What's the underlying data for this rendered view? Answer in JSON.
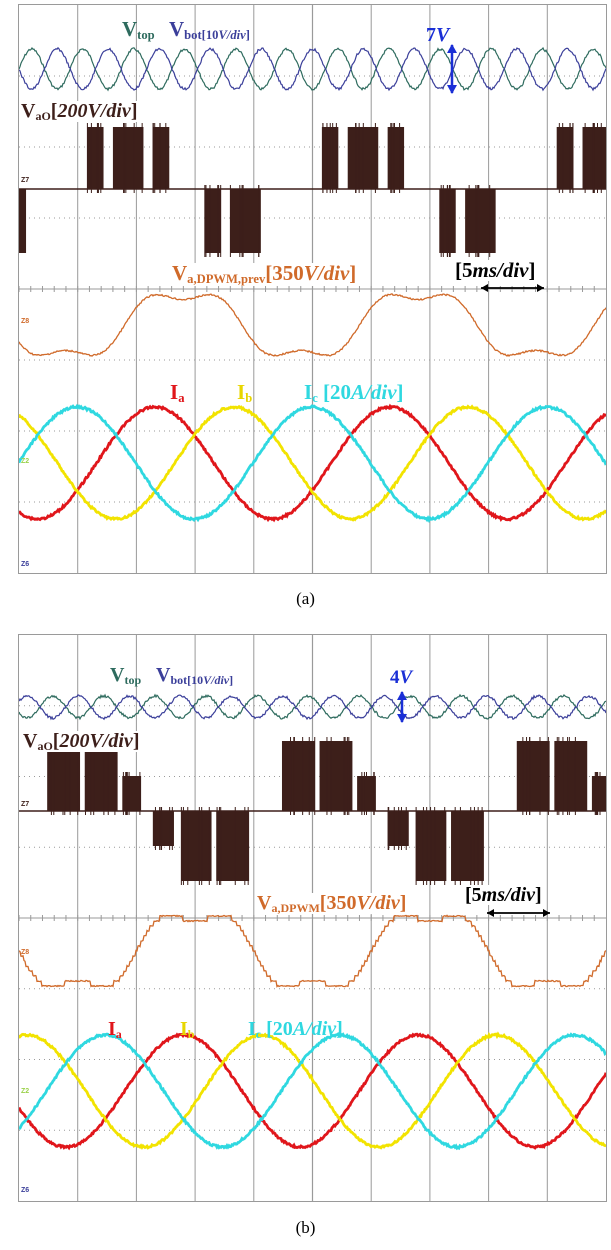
{
  "colors": {
    "vtop": "#2e6b5e",
    "vbot": "#3b3f9a",
    "vao": "#3d1f1a",
    "vdpwm": "#d06a2a",
    "ia": "#e0161b",
    "ib": "#f2e300",
    "ic": "#2fd8e0",
    "annot_blue": "#1a2fd6",
    "grid": "#9a9a9a"
  },
  "panels": [
    {
      "caption": "(a)",
      "labels": {
        "vtop": "V",
        "vtop_sub": "top",
        "vbot": "V",
        "vbot_sub": "bot[10",
        "vbot_unit": "V/div",
        "vbot_close": "]",
        "vao": "V",
        "vao_sub": "aO",
        "vao_scale": "[",
        "vao_unit": "200V/div",
        "vao_close": "]",
        "vdpwm": "V",
        "vdpwm_sub": "a,DPWM,prev",
        "vdpwm_scale": "[350",
        "vdpwm_unit": "V/div",
        "vdpwm_close": "]",
        "ia": "I",
        "ia_sub": "a",
        "ib": "I",
        "ib_sub": "b",
        "ic": "I",
        "ic_sub": "c",
        "current_scale": "[20",
        "current_unit": "A/div",
        "current_close": "]",
        "ripple": "7",
        "ripple_unit": "V",
        "time_scale": "[5",
        "time_unit": "ms/div",
        "time_close": "]"
      },
      "markers": {
        "vao": "Z7",
        "vdpwm": "Z8",
        "currents": "Z2",
        "bottom": "Z6"
      }
    },
    {
      "caption": "(b)",
      "labels": {
        "vtop": "V",
        "vtop_sub": "top",
        "vbot": "V",
        "vbot_sub": "bot[10",
        "vbot_unit": "V/div",
        "vbot_close": "]",
        "vao": "V",
        "vao_sub": "aO",
        "vao_scale": "[",
        "vao_unit": "200V/div",
        "vao_close": "]",
        "vdpwm": "V",
        "vdpwm_sub": "a,DPWM",
        "vdpwm_scale": "[350",
        "vdpwm_unit": "V/div",
        "vdpwm_close": "]",
        "ia": "I",
        "ia_sub": "a",
        "ib": "I",
        "ib_sub": "b",
        "ic": "I",
        "ic_sub": "c",
        "current_scale": "[20",
        "current_unit": "A/div",
        "current_close": "]",
        "ripple": "4",
        "ripple_unit": "V",
        "time_scale": "[5",
        "time_unit": "ms/div",
        "time_close": "]"
      },
      "markers": {
        "vao": "Z7",
        "vdpwm": "Z8",
        "currents": "Z2",
        "bottom": "Z6"
      }
    }
  ],
  "chart_data": [
    {
      "type": "line",
      "title": "(a)",
      "time_per_div_ms": 5,
      "grid_divisions": {
        "x": 10,
        "y": 8
      },
      "grid": true,
      "series": [
        {
          "name": "Vtop",
          "scale": "10 V/div",
          "ripple_V": 7,
          "ripple_cycles_per_screen": 11.5
        },
        {
          "name": "Vbot",
          "scale": "10 V/div",
          "ripple_V": 7,
          "ripple_cycles_per_screen": 11.5
        },
        {
          "name": "VaO",
          "scale": "200 V/div",
          "pwm_pattern": "discontinuous",
          "fundamental_cycles_per_screen": 2.5
        },
        {
          "name": "Va,DPWM,prev",
          "scale": "350 V/div",
          "fundamental_cycles_per_screen": 2.5
        },
        {
          "name": "Ia",
          "scale": "20 A/div",
          "fundamental_cycles_per_screen": 2.5
        },
        {
          "name": "Ib",
          "scale": "20 A/div",
          "fundamental_cycles_per_screen": 2.5
        },
        {
          "name": "Ic",
          "scale": "20 A/div",
          "fundamental_cycles_per_screen": 2.5
        }
      ]
    },
    {
      "type": "line",
      "title": "(b)",
      "time_per_div_ms": 5,
      "grid_divisions": {
        "x": 10,
        "y": 8
      },
      "grid": true,
      "series": [
        {
          "name": "Vtop",
          "scale": "10 V/div",
          "ripple_V": 4,
          "ripple_cycles_per_screen": 11.5
        },
        {
          "name": "Vbot",
          "scale": "10 V/div",
          "ripple_V": 4,
          "ripple_cycles_per_screen": 11.5
        },
        {
          "name": "VaO",
          "scale": "200 V/div",
          "pwm_pattern": "stepped discontinuous",
          "fundamental_cycles_per_screen": 2.5
        },
        {
          "name": "Va,DPWM",
          "scale": "350 V/div",
          "fundamental_cycles_per_screen": 2.5
        },
        {
          "name": "Ia",
          "scale": "20 A/div",
          "fundamental_cycles_per_screen": 2.5
        },
        {
          "name": "Ib",
          "scale": "20 A/div",
          "fundamental_cycles_per_screen": 2.5
        },
        {
          "name": "Ic",
          "scale": "20 A/div",
          "fundamental_cycles_per_screen": 2.5
        }
      ]
    }
  ]
}
